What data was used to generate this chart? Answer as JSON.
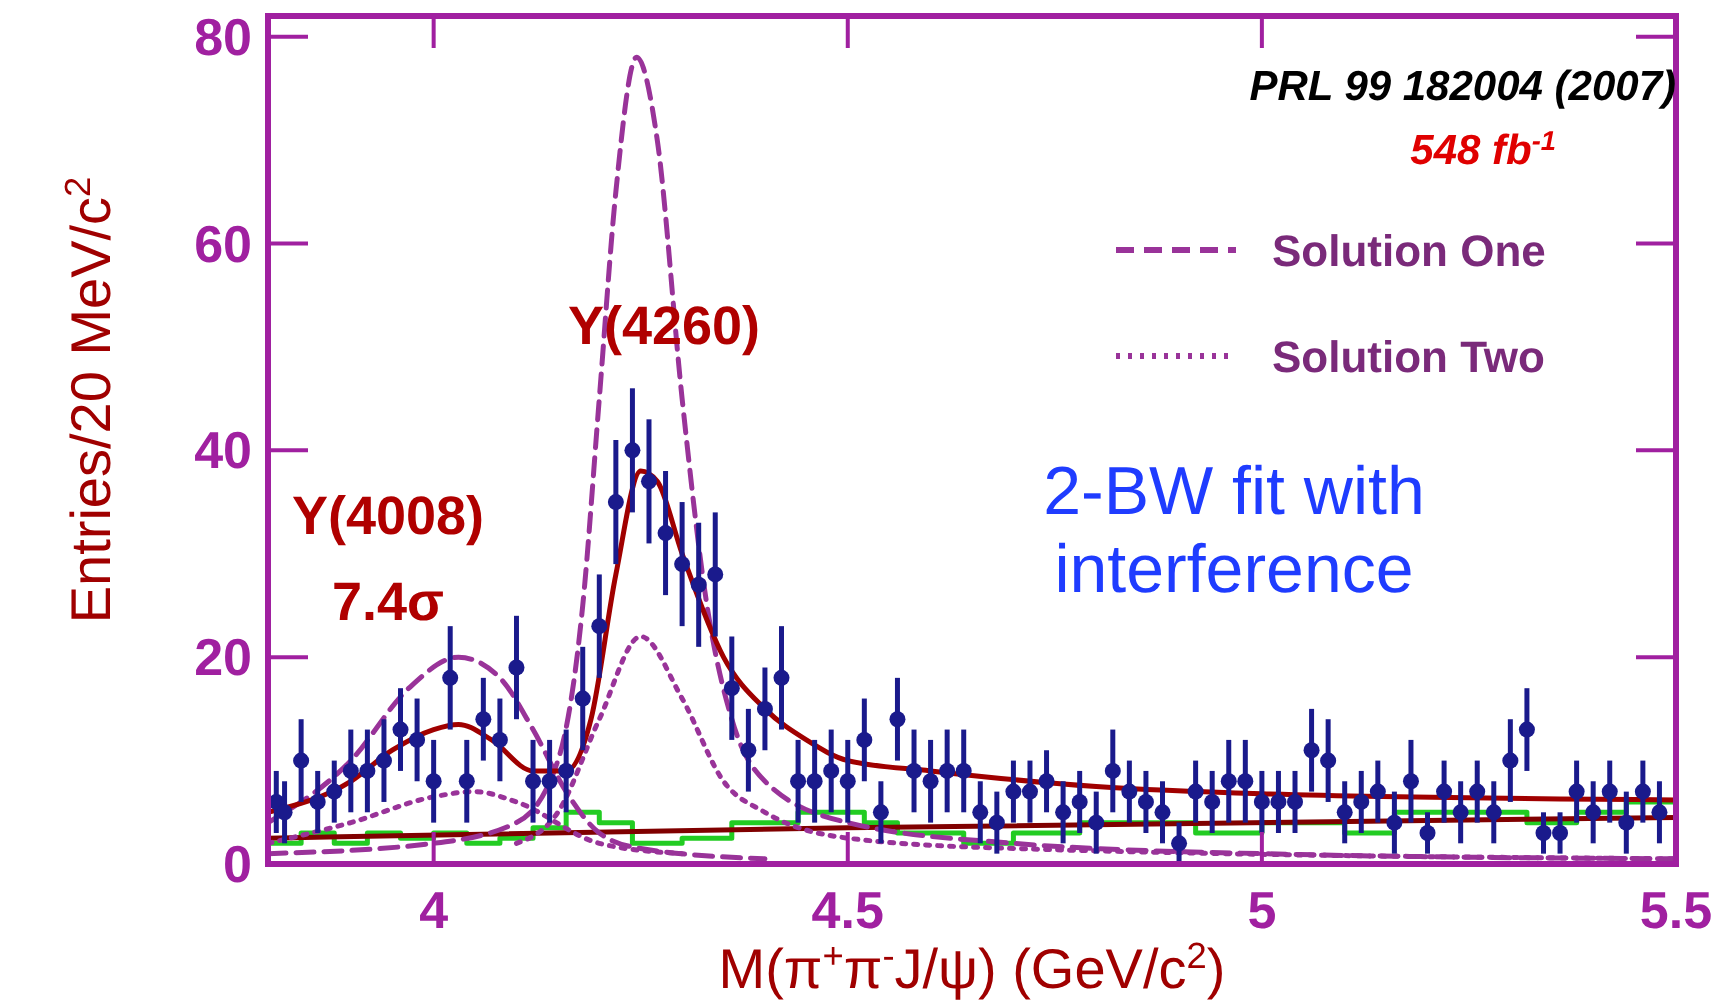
{
  "chart_data": {
    "type": "scatter",
    "xlabel": "M(π$^{+}$π$^{-}$J/ψ) (GeV/c$^{2}$)",
    "ylabel": "Entries/20 MeV/c$^{2}$",
    "xlim": [
      3.8,
      5.5
    ],
    "ylim": [
      0,
      82
    ],
    "xticks": [
      4,
      4.5,
      5,
      5.5
    ],
    "yticks": [
      0,
      20,
      40,
      60,
      80
    ],
    "legend": "top right",
    "series": [
      {
        "type": "step",
        "color": "#22cc22",
        "x": [
          3.8,
          3.84,
          3.88,
          3.92,
          3.96,
          4.0,
          4.04,
          4.08,
          4.12,
          4.16,
          4.2,
          4.24,
          4.3,
          4.36,
          4.44,
          4.52,
          4.56,
          4.64,
          4.7,
          4.78,
          4.86,
          4.92,
          5.0,
          5.1,
          5.16,
          5.24,
          5.32,
          5.38,
          5.44,
          5.5
        ],
        "values": [
          2,
          3,
          2,
          3,
          2.5,
          3,
          2,
          2.5,
          3.5,
          5,
          4,
          2,
          2.5,
          4,
          5,
          4,
          3,
          2,
          3,
          4,
          4,
          3,
          4,
          3,
          5,
          5,
          4,
          5,
          6,
          6
        ]
      },
      {
        "type": "line",
        "color": "#800000",
        "line_style": "solid",
        "x": [
          3.8,
          4.5,
          5.5
        ],
        "values": [
          2.5,
          3.5,
          4.5
        ]
      },
      {
        "type": "line",
        "color": "#993399",
        "line_style": "dashed",
        "x": [
          3.8,
          3.9,
          3.97,
          4.03,
          4.08,
          4.12,
          4.16,
          4.2,
          4.25,
          4.4
        ],
        "values": [
          4,
          10,
          17,
          20,
          18,
          13,
          7,
          3,
          1.5,
          0.5
        ]
      },
      {
        "type": "line",
        "color": "#993399",
        "line_style": "dotted",
        "x": [
          3.8,
          3.9,
          4.0,
          4.05,
          4.1,
          4.2,
          4.3
        ],
        "values": [
          2,
          4,
          6.5,
          7,
          6,
          2,
          1
        ]
      },
      {
        "type": "line",
        "name": "Solution One",
        "color": "#993399",
        "line_style": "dashed",
        "x": [
          3.8,
          4.0,
          4.1,
          4.15,
          4.18,
          4.2,
          4.22,
          4.245,
          4.27,
          4.3,
          4.33,
          4.36,
          4.4,
          4.5,
          4.7,
          5.0,
          5.5
        ],
        "values": [
          1,
          2,
          4,
          10,
          25,
          45,
          65,
          78,
          70,
          45,
          25,
          14,
          8,
          4,
          2,
          1,
          0.5
        ]
      },
      {
        "type": "line",
        "name": "Solution Two",
        "color": "#993399",
        "line_style": "dotted",
        "x": [
          4.1,
          4.15,
          4.2,
          4.25,
          4.3,
          4.35,
          4.4,
          4.5,
          4.7,
          5.5
        ],
        "values": [
          2,
          5,
          14,
          22,
          16,
          8,
          5,
          2.5,
          1.5,
          0.5
        ]
      },
      {
        "type": "line",
        "color": "#a00000",
        "line_style": "solid",
        "x": [
          3.8,
          3.9,
          3.95,
          4.0,
          4.03,
          4.07,
          4.12,
          4.16,
          4.19,
          4.22,
          4.25,
          4.27,
          4.3,
          4.35,
          4.4,
          4.45,
          4.5,
          4.6,
          4.8,
          5.0,
          5.5
        ],
        "values": [
          5,
          8,
          11,
          13,
          13.5,
          12,
          9,
          9,
          14,
          28,
          38,
          37,
          30,
          20,
          15,
          12,
          10,
          9,
          7.5,
          6.8,
          6.2
        ]
      },
      {
        "color": "#1a1a8c",
        "marker": "circle",
        "x": [
          3.81,
          3.82,
          3.84,
          3.86,
          3.88,
          3.9,
          3.92,
          3.94,
          3.96,
          3.98,
          4.0,
          4.02,
          4.04,
          4.06,
          4.08,
          4.1,
          4.12,
          4.14,
          4.16,
          4.18,
          4.2,
          4.22,
          4.24,
          4.26,
          4.28,
          4.3,
          4.32,
          4.34,
          4.36,
          4.38,
          4.4,
          4.42,
          4.44,
          4.46,
          4.48,
          4.5,
          4.52,
          4.54,
          4.56,
          4.58,
          4.6,
          4.62,
          4.64,
          4.66,
          4.68,
          4.7,
          4.72,
          4.74,
          4.76,
          4.78,
          4.8,
          4.82,
          4.84,
          4.86,
          4.88,
          4.9,
          4.92,
          4.94,
          4.96,
          4.98,
          5.0,
          5.02,
          5.04,
          5.06,
          5.08,
          5.1,
          5.12,
          5.14,
          5.16,
          5.18,
          5.2,
          5.22,
          5.24,
          5.26,
          5.28,
          5.3,
          5.32,
          5.34,
          5.36,
          5.38,
          5.4,
          5.42,
          5.44,
          5.46,
          5.48
        ],
        "values": [
          6,
          5,
          10,
          6,
          7,
          9,
          9,
          10,
          13,
          12,
          8,
          18,
          8,
          14,
          12,
          19,
          8,
          8,
          9,
          16,
          23,
          35,
          40,
          37,
          32,
          29,
          27,
          28,
          17,
          11,
          15,
          18,
          8,
          8,
          9,
          8,
          12,
          5,
          14,
          9,
          8,
          9,
          9,
          5,
          4,
          7,
          7,
          8,
          5,
          6,
          4,
          9,
          7,
          6,
          5,
          2,
          7,
          6,
          8,
          8,
          6,
          6,
          6,
          11,
          10,
          5,
          6,
          7,
          4,
          8,
          3,
          7,
          5,
          7,
          5,
          10,
          13,
          3,
          3,
          7,
          5,
          7,
          4,
          7,
          5
        ],
        "errors": [
          3,
          3,
          4,
          3,
          3,
          4,
          4,
          4,
          4,
          4,
          4,
          5,
          4,
          4,
          4,
          5,
          4,
          4,
          4,
          5,
          5,
          6,
          6,
          6,
          6,
          6,
          6,
          6,
          5,
          4,
          4,
          5,
          4,
          4,
          4,
          4,
          4,
          3,
          4,
          4,
          4,
          4,
          4,
          3,
          3,
          3,
          3,
          3,
          3,
          3,
          3,
          4,
          3,
          3,
          3,
          2,
          3,
          3,
          4,
          4,
          3,
          3,
          3,
          4,
          4,
          3,
          3,
          3,
          3,
          4,
          2,
          3,
          3,
          3,
          3,
          4,
          4,
          2,
          2,
          3,
          3,
          3,
          3,
          3,
          3
        ]
      }
    ],
    "annotations": [
      "PRL 99 182004 (2007)",
      "548 fb$^{-1}$",
      "Y(4260)",
      "Y(4008)",
      "7.4σ",
      "2-BW fit with\ninterference"
    ]
  }
}
